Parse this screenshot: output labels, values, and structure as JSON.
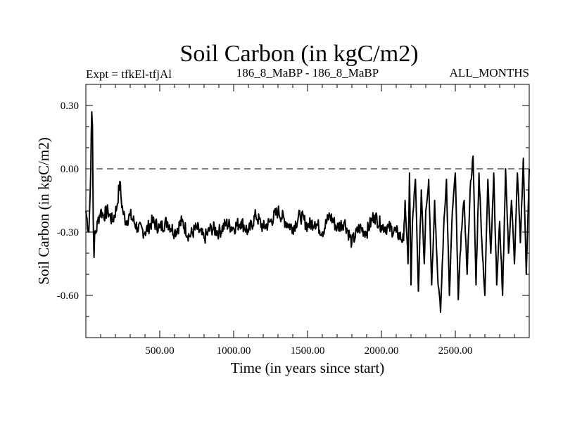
{
  "chart_data": {
    "type": "line",
    "title": "Soil Carbon (in kgC/m2)",
    "subtitle_left": "Expt = tfkEl-tfjAl",
    "subtitle_center": "186_8_MaBP - 186_8_MaBP",
    "subtitle_right": "ALL_MONTHS",
    "xlabel": "Time (in years since start)",
    "ylabel": "Soil Carbon (in kgC/m2)",
    "xlim": [
      0,
      3000
    ],
    "ylim": [
      -0.8,
      0.4
    ],
    "xticks": [
      500,
      1000,
      1500,
      2000,
      2500
    ],
    "xtick_labels": [
      "500.00",
      "1000.00",
      "1500.00",
      "2000.00",
      "2500.00"
    ],
    "yticks": [
      0.3,
      0.0,
      -0.3,
      -0.6
    ],
    "ytick_labels": [
      "0.30",
      "0.00",
      "-0.30",
      "-0.60"
    ],
    "reference_line": {
      "y": 0.0,
      "style": "dashed"
    },
    "line_color": "#000000",
    "series": [
      {
        "x": [
          0,
          20,
          30,
          40,
          45,
          50,
          55,
          60,
          70,
          80,
          100,
          120,
          150,
          180,
          210,
          230,
          240,
          250,
          270,
          300,
          350,
          400,
          450,
          500,
          550,
          600,
          650,
          700,
          750,
          800,
          850,
          900,
          950,
          1000,
          1050,
          1100,
          1150,
          1200,
          1250,
          1300,
          1350,
          1400,
          1450,
          1500,
          1550,
          1600,
          1650,
          1700,
          1750,
          1800,
          1850,
          1900,
          1950,
          2000,
          2050,
          2100,
          2150,
          2160,
          2180,
          2190,
          2200,
          2210,
          2230,
          2250,
          2270,
          2290,
          2300,
          2320,
          2340,
          2360,
          2380,
          2400,
          2420,
          2440,
          2460,
          2480,
          2500,
          2520,
          2540,
          2560,
          2580,
          2600,
          2620,
          2640,
          2660,
          2680,
          2700,
          2720,
          2740,
          2760,
          2780,
          2800,
          2820,
          2840,
          2860,
          2880,
          2900,
          2920,
          2940,
          2960,
          2980,
          3000
        ],
        "y": [
          -0.2,
          -0.3,
          -0.1,
          0.27,
          0.2,
          -0.25,
          -0.42,
          -0.3,
          -0.3,
          -0.25,
          -0.2,
          -0.22,
          -0.2,
          -0.25,
          -0.18,
          -0.06,
          -0.15,
          -0.2,
          -0.25,
          -0.22,
          -0.28,
          -0.3,
          -0.25,
          -0.28,
          -0.25,
          -0.3,
          -0.25,
          -0.32,
          -0.28,
          -0.33,
          -0.28,
          -0.3,
          -0.26,
          -0.28,
          -0.25,
          -0.3,
          -0.22,
          -0.28,
          -0.25,
          -0.2,
          -0.25,
          -0.28,
          -0.22,
          -0.27,
          -0.25,
          -0.3,
          -0.22,
          -0.28,
          -0.25,
          -0.35,
          -0.28,
          -0.3,
          -0.22,
          -0.27,
          -0.28,
          -0.3,
          -0.34,
          -0.15,
          -0.45,
          -0.02,
          -0.55,
          -0.25,
          -0.05,
          -0.58,
          -0.1,
          -0.45,
          -0.2,
          -0.05,
          -0.55,
          -0.15,
          -0.5,
          -0.68,
          -0.3,
          -0.05,
          -0.6,
          -0.2,
          -0.02,
          -0.62,
          -0.3,
          -0.15,
          -0.5,
          -0.1,
          0.06,
          -0.55,
          -0.02,
          -0.35,
          -0.6,
          -0.05,
          -0.4,
          -0.02,
          -0.55,
          -0.25,
          -0.6,
          0.0,
          -0.4,
          -0.15,
          -0.45,
          -0.02,
          -0.35,
          0.05,
          -0.5,
          0.0
        ]
      }
    ]
  }
}
